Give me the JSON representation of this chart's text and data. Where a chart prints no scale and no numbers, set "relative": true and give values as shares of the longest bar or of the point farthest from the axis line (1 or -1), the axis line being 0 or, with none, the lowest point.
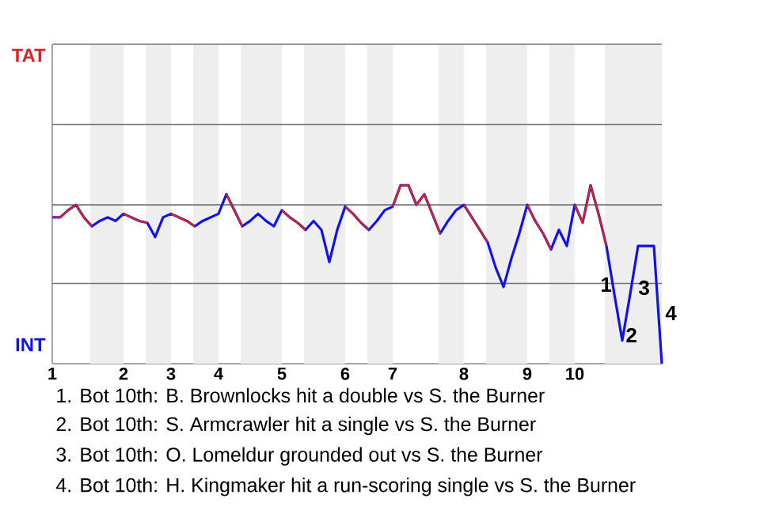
{
  "chart_data": {
    "type": "line",
    "relative": true,
    "categories": [
      "1",
      null,
      null,
      null,
      null,
      null,
      null,
      null,
      null,
      "2",
      null,
      null,
      null,
      null,
      null,
      "3",
      null,
      null,
      null,
      null,
      null,
      "4",
      null,
      null,
      null,
      null,
      null,
      null,
      null,
      "5",
      null,
      null,
      null,
      null,
      null,
      null,
      null,
      "6",
      null,
      null,
      null,
      null,
      null,
      "7",
      null,
      null,
      null,
      null,
      null,
      null,
      null,
      null,
      "8",
      null,
      null,
      null,
      null,
      null,
      null,
      null,
      "9",
      null,
      null,
      null,
      null,
      null,
      "10",
      null,
      null,
      null,
      null,
      null,
      null,
      null,
      null,
      null,
      null,
      null
    ],
    "series": [
      {
        "color": "#1111ee",
        "values": [
          0.82,
          0.82,
          0.86,
          0.89,
          0.82,
          0.77,
          0.8,
          0.82,
          0.8,
          0.84,
          0.82,
          0.8,
          0.79,
          0.71,
          0.82,
          0.84,
          0.82,
          0.8,
          0.77,
          0.8,
          0.82,
          0.84,
          0.95,
          0.86,
          0.77,
          0.8,
          0.84,
          0.8,
          0.77,
          0.86,
          0.82,
          0.79,
          0.75,
          0.8,
          0.75,
          0.57,
          0.75,
          0.88,
          0.84,
          0.79,
          0.75,
          0.8,
          0.86,
          0.88,
          1,
          1,
          0.89,
          0.95,
          0.84,
          0.73,
          0.8,
          0.86,
          0.89,
          0.82,
          0.75,
          0.68,
          0.54,
          0.43,
          0.59,
          0.73,
          0.89,
          0.8,
          0.73,
          0.64,
          0.75,
          0.66,
          0.89,
          0.79,
          1,
          0.84,
          0.66,
          0.39,
          0.13,
          0.39,
          0.66,
          0.66,
          0.66,
          0
        ]
      },
      {
        "color": "#dd2222",
        "values": [
          0.82,
          0.82,
          0.86,
          0.89,
          0.82,
          0.77,
          null,
          null,
          null,
          0.84,
          0.82,
          0.8,
          0.79,
          null,
          null,
          0.84,
          0.82,
          0.8,
          0.77,
          null,
          null,
          null,
          0.95,
          0.86,
          0.77,
          null,
          null,
          null,
          null,
          0.86,
          0.82,
          0.79,
          0.75,
          null,
          null,
          null,
          null,
          0.88,
          0.84,
          0.79,
          0.75,
          null,
          null,
          0.88,
          1,
          1,
          0.89,
          0.95,
          0.84,
          0.73,
          null,
          null,
          0.89,
          0.82,
          0.75,
          0.68,
          null,
          null,
          null,
          null,
          0.89,
          0.8,
          0.73,
          0.64,
          null,
          null,
          0.89,
          0.79,
          1,
          0.84,
          0.66,
          null,
          null,
          null,
          null,
          null,
          null,
          null
        ]
      }
    ],
    "ref_lines": [
      {
        "axis": "y",
        "value": 0.45,
        "color": "#737373"
      },
      {
        "axis": "y",
        "value": 0.89,
        "color": "#737373"
      },
      {
        "axis": "y",
        "value": 1.34,
        "color": "#737373"
      },
      {
        "axis": "y",
        "value": 1.79,
        "color": "#737373"
      }
    ],
    "annotations": [
      "TAT",
      "INT",
      "1",
      "2",
      "3",
      "4",
      "1. Bot 10th: B. Brownlocks hit a double vs S. the Burner",
      "2. Bot 10th: S. Armcrawler hit a single vs S. the Burner",
      "3. Bot 10th: O. Lomeldur grounded out vs S. the Burner",
      "4. Bot 10th: H. Kingmaker hit a run-scoring single vs S. the Burner"
    ]
  }
}
